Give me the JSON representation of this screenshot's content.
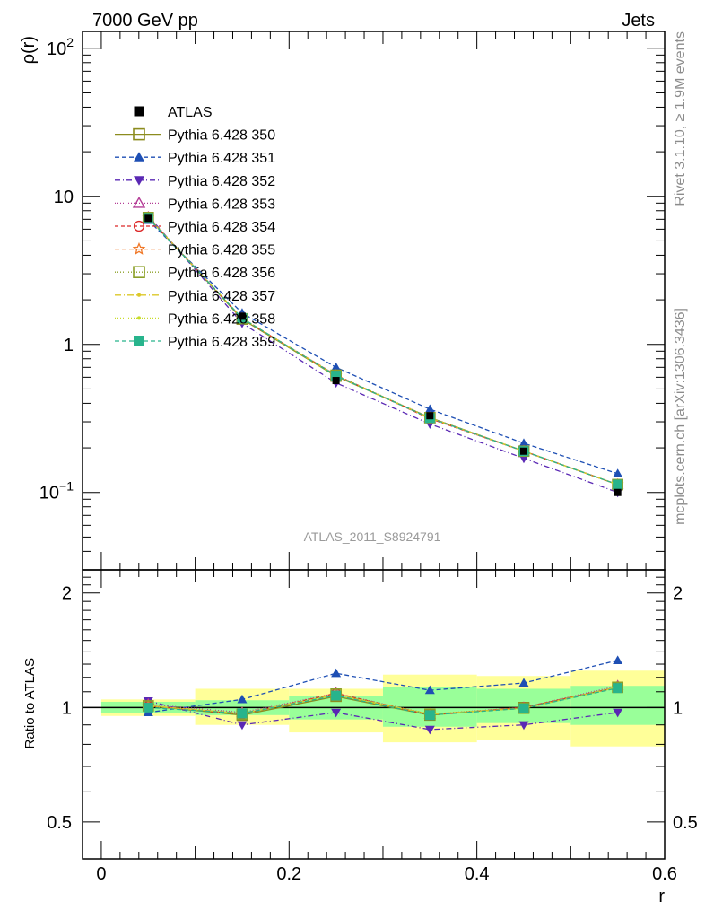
{
  "header": {
    "left": "7000 GeV pp",
    "right": "Jets"
  },
  "side_labels": {
    "version": "Rivet 3.1.10, ≥ 1.9M events",
    "source": "mcplots.cern.ch [arXiv:1306.3436]"
  },
  "chart_data": [
    {
      "type": "line",
      "name": "main",
      "ylabel": "ρ(r)",
      "yscale": "log",
      "ylim": [
        0.03,
        130
      ],
      "xlim": [
        -0.02,
        0.6
      ],
      "yticks": [
        {
          "v": 0.1,
          "base": "10",
          "exp": "−1"
        },
        {
          "v": 1,
          "base": "1",
          "exp": ""
        },
        {
          "v": 10,
          "base": "10",
          "exp": ""
        },
        {
          "v": 100,
          "base": "10",
          "exp": "2"
        }
      ],
      "watermark": "ATLAS_2011_S8924791",
      "x": [
        0.05,
        0.15,
        0.25,
        0.35,
        0.45,
        0.55
      ],
      "data": {
        "name": "ATLAS",
        "values": [
          7.1,
          1.55,
          0.57,
          0.33,
          0.19,
          0.1
        ]
      },
      "series": [
        {
          "name": "Pythia 6.428 350",
          "color": "#8c8c1e",
          "marker": "open-square",
          "dash": "",
          "values": [
            7.2,
            1.48,
            0.61,
            0.32,
            0.19,
            0.113
          ]
        },
        {
          "name": "Pythia 6.428 351",
          "color": "#1e4fb4",
          "marker": "filled-triangle-up",
          "dash": "5,3",
          "values": [
            6.9,
            1.63,
            0.7,
            0.365,
            0.215,
            0.134
          ]
        },
        {
          "name": "Pythia 6.428 352",
          "color": "#5a28b4",
          "marker": "filled-triangle-down",
          "dash": "6,3,1,3",
          "values": [
            7.4,
            1.39,
            0.55,
            0.29,
            0.17,
            0.1
          ]
        },
        {
          "name": "Pythia 6.428 353",
          "color": "#b43c96",
          "marker": "open-triangle-up",
          "dash": "1,2",
          "values": [
            7.25,
            1.5,
            0.62,
            0.315,
            0.19,
            0.113
          ]
        },
        {
          "name": "Pythia 6.428 354",
          "color": "#dc2828",
          "marker": "open-circle",
          "dash": "4,3",
          "values": [
            7.2,
            1.49,
            0.62,
            0.315,
            0.19,
            0.113
          ]
        },
        {
          "name": "Pythia 6.428 355",
          "color": "#f07828",
          "marker": "open-star",
          "dash": "5,3",
          "values": [
            7.2,
            1.5,
            0.615,
            0.32,
            0.19,
            0.113
          ]
        },
        {
          "name": "Pythia 6.428 356",
          "color": "#8ca028",
          "marker": "open-square",
          "dash": "1,2",
          "values": [
            7.2,
            1.49,
            0.62,
            0.32,
            0.19,
            0.113
          ]
        },
        {
          "name": "Pythia 6.428 357",
          "color": "#dcc828",
          "marker": "small-dot",
          "dash": "7,3,1,3",
          "values": [
            7.2,
            1.5,
            0.615,
            0.318,
            0.19,
            0.113
          ]
        },
        {
          "name": "Pythia 6.428 358",
          "color": "#c8dc28",
          "marker": "small-dot",
          "dash": "1,2",
          "values": [
            7.2,
            1.5,
            0.615,
            0.318,
            0.19,
            0.113
          ]
        },
        {
          "name": "Pythia 6.428 359",
          "color": "#28b48c",
          "marker": "filled-square",
          "dash": "5,3",
          "values": [
            7.15,
            1.5,
            0.615,
            0.318,
            0.19,
            0.113
          ]
        }
      ]
    },
    {
      "type": "line",
      "name": "ratio",
      "ylabel": "Ratio to ATLAS",
      "xlabel": "r",
      "yscale": "log",
      "ylim": [
        0.4,
        2.3
      ],
      "xlim": [
        -0.02,
        0.6
      ],
      "xticks": [
        "0",
        "0.2",
        "0.4",
        "0.6"
      ],
      "yticks": [
        "0.5",
        "1",
        "2"
      ],
      "bands": [
        {
          "x0": 0.0,
          "x1": 0.1,
          "inner": [
            0.965,
            1.035
          ],
          "outer": [
            0.95,
            1.05
          ]
        },
        {
          "x0": 0.1,
          "x1": 0.2,
          "inner": [
            0.955,
            1.045
          ],
          "outer": [
            0.9,
            1.12
          ]
        },
        {
          "x0": 0.2,
          "x1": 0.3,
          "inner": [
            0.93,
            1.07
          ],
          "outer": [
            0.86,
            1.12
          ]
        },
        {
          "x0": 0.3,
          "x1": 0.4,
          "inner": [
            0.89,
            1.13
          ],
          "outer": [
            0.81,
            1.22
          ]
        },
        {
          "x0": 0.4,
          "x1": 0.5,
          "inner": [
            0.91,
            1.12
          ],
          "outer": [
            0.82,
            1.21
          ]
        },
        {
          "x0": 0.5,
          "x1": 0.6,
          "inner": [
            0.9,
            1.14
          ],
          "outer": [
            0.79,
            1.25
          ]
        }
      ],
      "series": [
        {
          "name": "Pythia 6.428 350",
          "values": [
            1.01,
            0.955,
            1.07,
            0.955,
            1.0,
            1.13
          ]
        },
        {
          "name": "Pythia 6.428 351",
          "values": [
            0.97,
            1.05,
            1.23,
            1.11,
            1.16,
            1.33
          ]
        },
        {
          "name": "Pythia 6.428 352",
          "values": [
            1.04,
            0.9,
            0.97,
            0.875,
            0.9,
            0.97
          ]
        },
        {
          "name": "Pythia 6.428 353",
          "values": [
            1.02,
            0.97,
            1.09,
            0.96,
            1.0,
            1.14
          ]
        },
        {
          "name": "Pythia 6.428 354",
          "values": [
            1.01,
            0.96,
            1.09,
            0.955,
            1.0,
            1.13
          ]
        },
        {
          "name": "Pythia 6.428 355",
          "values": [
            1.01,
            0.965,
            1.08,
            0.96,
            0.995,
            1.13
          ]
        },
        {
          "name": "Pythia 6.428 356",
          "values": [
            1.01,
            0.96,
            1.085,
            0.96,
            0.995,
            1.13
          ]
        },
        {
          "name": "Pythia 6.428 357",
          "values": [
            1.01,
            0.965,
            1.08,
            0.96,
            0.995,
            1.13
          ]
        },
        {
          "name": "Pythia 6.428 358",
          "values": [
            1.01,
            0.965,
            1.08,
            0.96,
            0.995,
            1.13
          ]
        },
        {
          "name": "Pythia 6.428 359",
          "values": [
            1.0,
            0.965,
            1.075,
            0.955,
            0.995,
            1.125
          ]
        }
      ]
    }
  ]
}
